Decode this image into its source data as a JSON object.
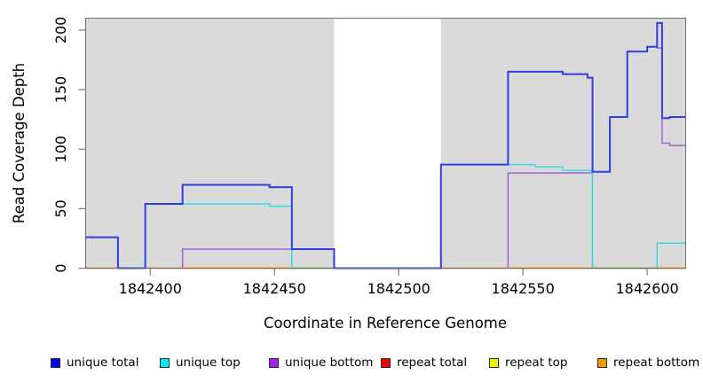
{
  "chart_data": {
    "type": "line",
    "line_style": "step-after",
    "title": "",
    "xlabel": "Coordinate in Reference Genome",
    "ylabel": "Read Coverage Depth",
    "xlim": [
      1842374,
      1842615.5
    ],
    "ylim": [
      0,
      210
    ],
    "x_ticks": [
      1842400,
      1842450,
      1842500,
      1842550,
      1842600
    ],
    "y_ticks": [
      0,
      50,
      100,
      150,
      200
    ],
    "grid": false,
    "plot_bg_color": "#DADADA",
    "border_color": "#6E6E6E",
    "masked_region": {
      "x_start": 1842474,
      "x_end": 1842517,
      "color": "#FFFFFF"
    },
    "legend_position": "bottom",
    "series": [
      {
        "name": "unique total",
        "legend_color": "#0000EE",
        "line_color": "#2F3FE2",
        "line_width": 2,
        "steps": [
          [
            1842374,
            26
          ],
          [
            1842387,
            0
          ],
          [
            1842398,
            54
          ],
          [
            1842413,
            70
          ],
          [
            1842448,
            68
          ],
          [
            1842457,
            16
          ],
          [
            1842474,
            0
          ],
          [
            1842517,
            87
          ],
          [
            1842544,
            165
          ],
          [
            1842566,
            163
          ],
          [
            1842576,
            160
          ],
          [
            1842578,
            81
          ],
          [
            1842585,
            127
          ],
          [
            1842592,
            182
          ],
          [
            1842600,
            186
          ],
          [
            1842604,
            206
          ],
          [
            1842606,
            126
          ],
          [
            1842609,
            127
          ]
        ]
      },
      {
        "name": "unique top",
        "legend_color": "#00EEEE",
        "line_color": "#35D9E6",
        "line_width": 1.5,
        "steps": [
          [
            1842374,
            26
          ],
          [
            1842387,
            0
          ],
          [
            1842398,
            54
          ],
          [
            1842448,
            52
          ],
          [
            1842457,
            0
          ],
          [
            1842517,
            87
          ],
          [
            1842555,
            85
          ],
          [
            1842566,
            82
          ],
          [
            1842578,
            0
          ],
          [
            1842604,
            21
          ]
        ]
      },
      {
        "name": "unique bottom",
        "legend_color": "#A020F0",
        "line_color": "#A55FD5",
        "line_width": 1.5,
        "steps": [
          [
            1842374,
            0
          ],
          [
            1842413,
            16
          ],
          [
            1842474,
            0
          ],
          [
            1842544,
            80
          ],
          [
            1842578,
            81
          ],
          [
            1842585,
            127
          ],
          [
            1842592,
            182
          ],
          [
            1842600,
            186
          ],
          [
            1842604,
            185
          ],
          [
            1842606,
            105
          ],
          [
            1842609,
            103
          ]
        ]
      },
      {
        "name": "repeat total",
        "legend_color": "#EE0000",
        "line_color": "#EE7799",
        "line_width": 1.5,
        "steps": [
          [
            1842374,
            0
          ]
        ]
      },
      {
        "name": "repeat top",
        "legend_color": "#EEEE00",
        "line_color": "#EEEE00",
        "line_width": 1.2,
        "steps": [
          [
            1842374,
            0
          ]
        ]
      },
      {
        "name": "repeat bottom",
        "legend_color": "#EE9900",
        "line_color": "#FF9800",
        "line_width": 1.8,
        "steps": [
          [
            1842413,
            0
          ],
          [
            1842474,
            null
          ],
          [
            1842545,
            0
          ]
        ]
      }
    ]
  },
  "legend": {
    "items": [
      {
        "label": "unique total",
        "color": "#0000EE"
      },
      {
        "label": "unique top",
        "color": "#00EEEE"
      },
      {
        "label": "unique bottom",
        "color": "#A020F0"
      },
      {
        "label": "repeat total",
        "color": "#EE0000"
      },
      {
        "label": "repeat top",
        "color": "#EEEE00"
      },
      {
        "label": "repeat bottom",
        "color": "#EE9900"
      }
    ]
  }
}
